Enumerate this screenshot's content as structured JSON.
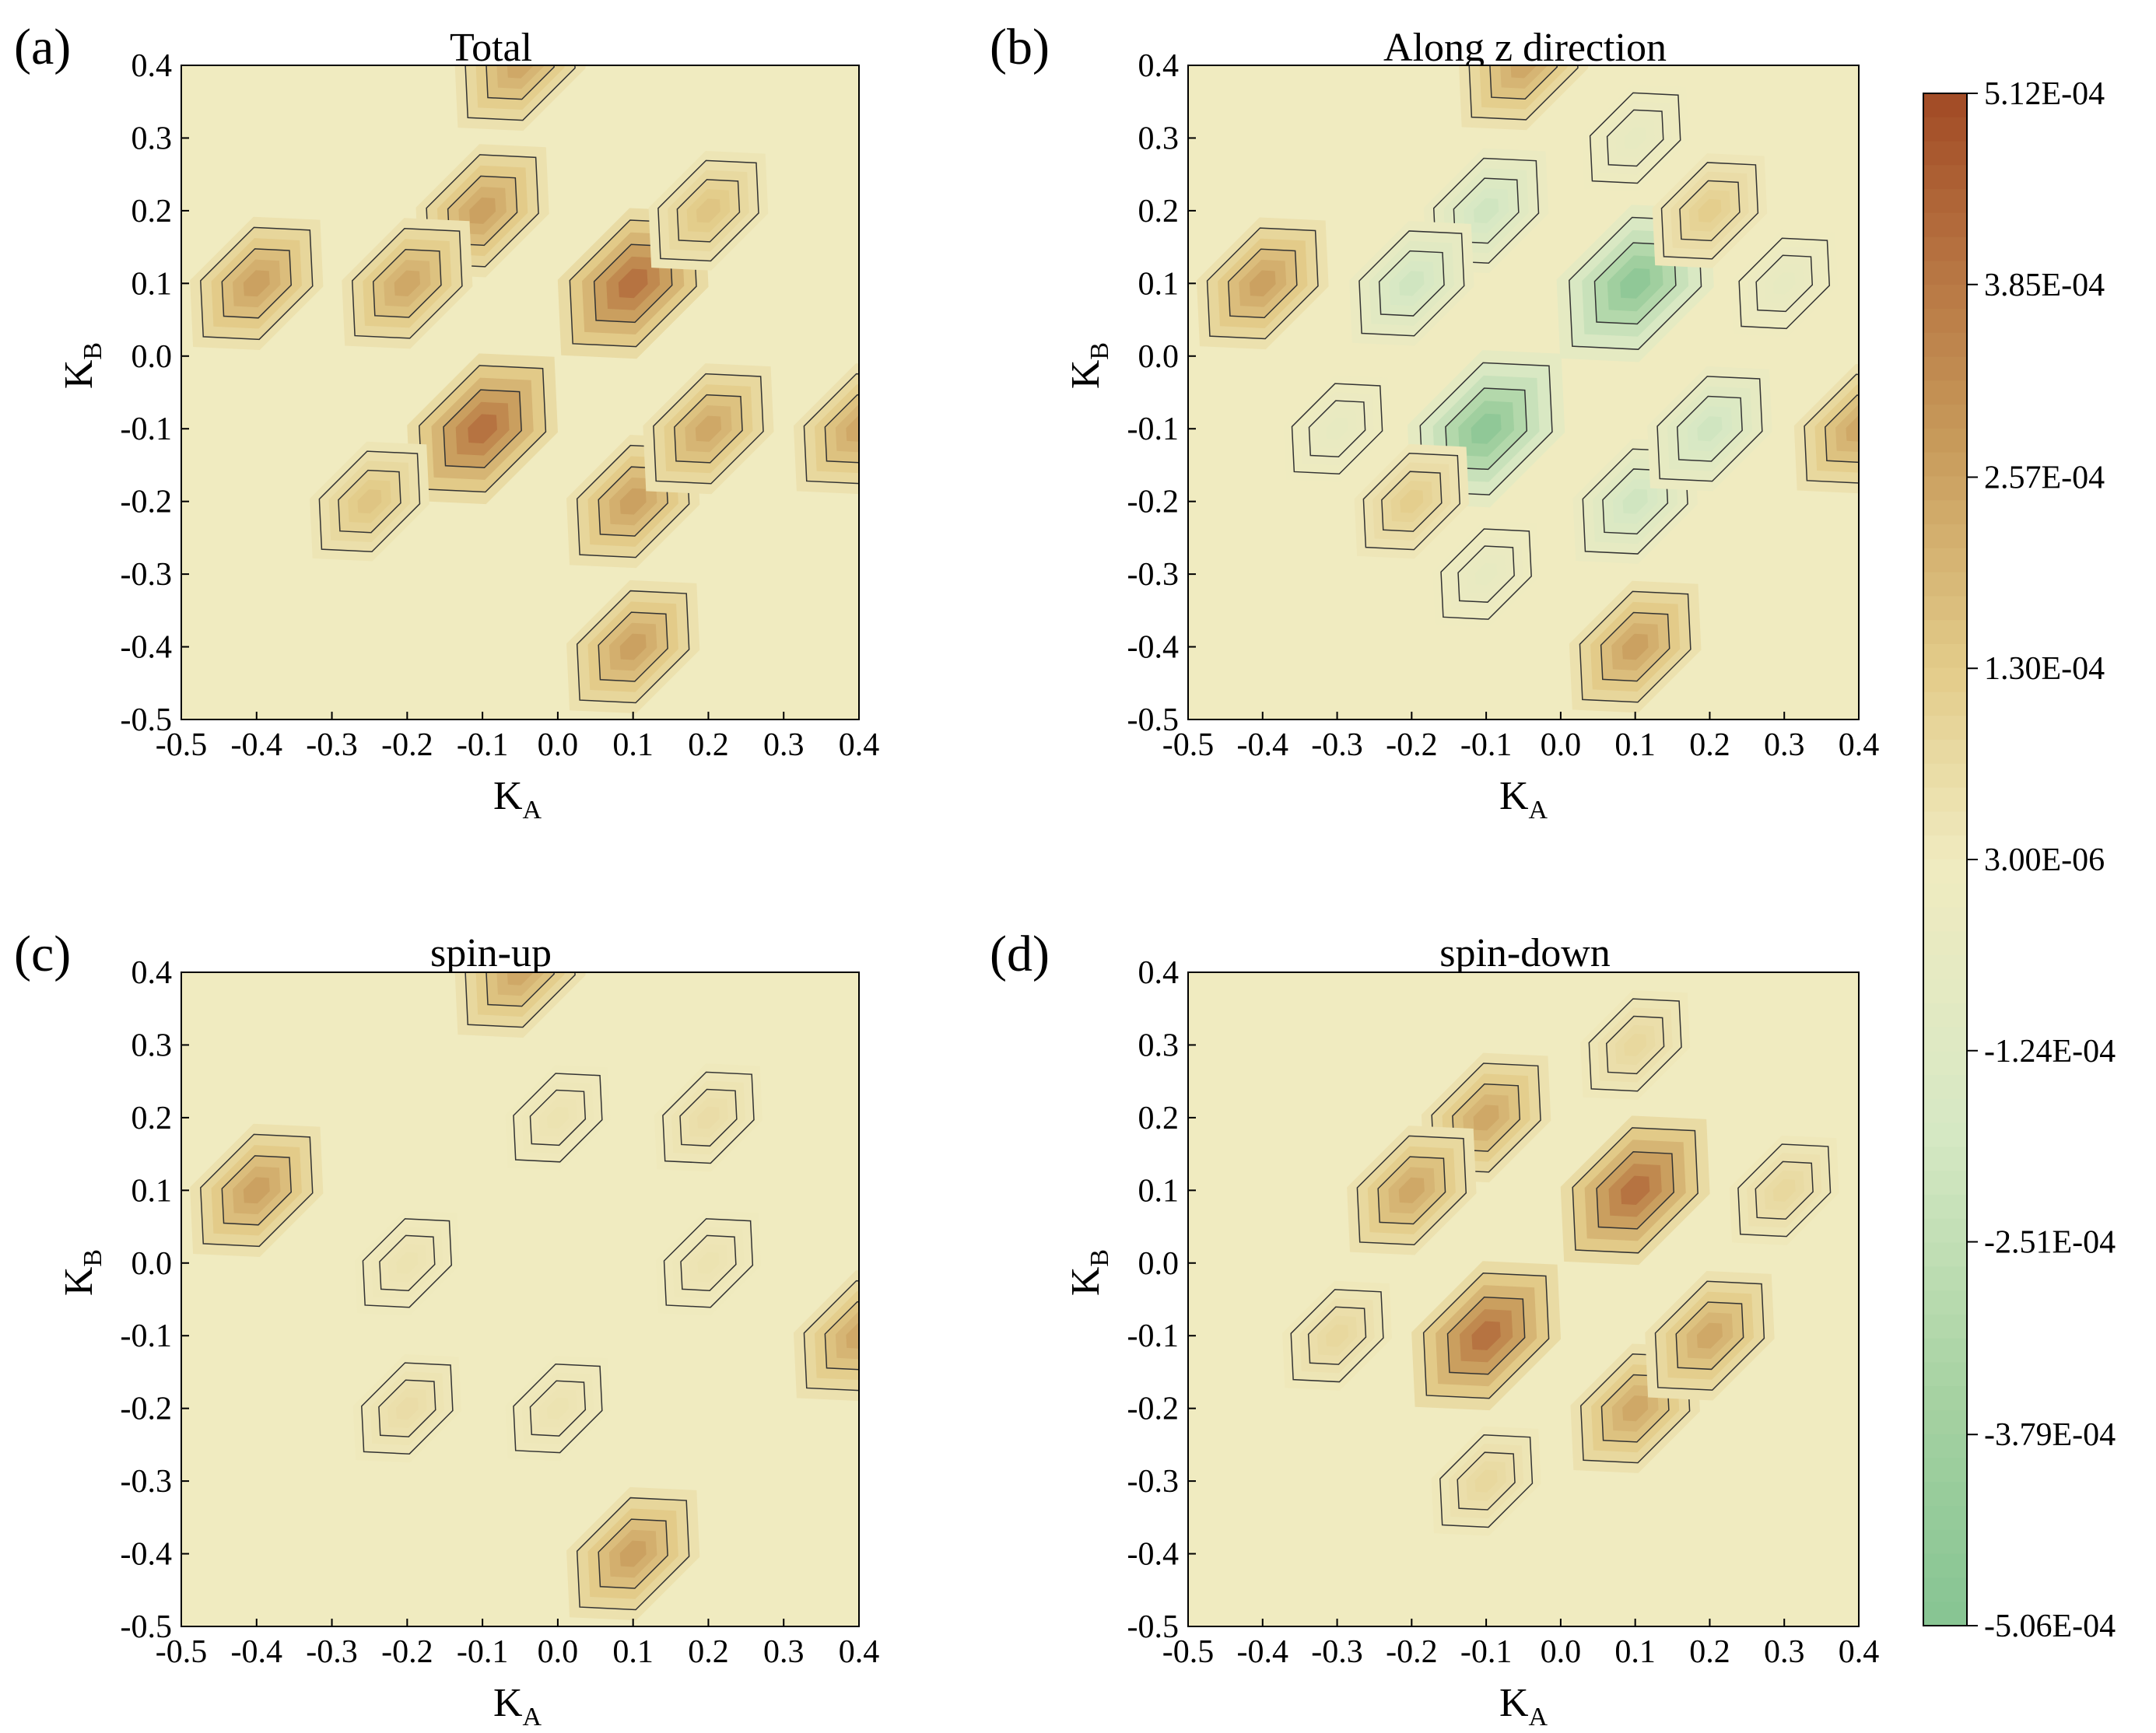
{
  "colors": {
    "background": "#f0ebc0",
    "contour_line": "#333333",
    "peak_light": "#e3cc8a",
    "peak_mid": "#c79a5a",
    "peak_dark": "#b5703f",
    "peak_max": "#a24a25",
    "neg_light": "#d6e8c4",
    "neg_mid": "#a6d2a2",
    "neg_max": "#86c492"
  },
  "chart_data": [
    {
      "type": "heatmap",
      "panel_label": "(a)",
      "title": "Total",
      "xlabel": "K",
      "xlabel_sub": "A",
      "ylabel": "K",
      "ylabel_sub": "B",
      "xlim": [
        -0.5,
        0.4
      ],
      "ylim": [
        -0.5,
        0.4
      ],
      "xticks": [
        "-0.5",
        "-0.4",
        "-0.3",
        "-0.2",
        "-0.1",
        "0.0",
        "0.1",
        "0.2",
        "0.3",
        "0.4"
      ],
      "yticks": [
        "-0.5",
        "-0.4",
        "-0.3",
        "-0.2",
        "-0.1",
        "0.0",
        "0.1",
        "0.2",
        "0.3",
        "0.4"
      ],
      "peaks": [
        {
          "x": -0.4,
          "y": 0.1,
          "value": 0.00026
        },
        {
          "x": 0.1,
          "y": -0.4,
          "value": 0.00026
        },
        {
          "x": -0.05,
          "y": 0.4,
          "value": 0.00024
        },
        {
          "x": 0.4,
          "y": -0.1,
          "value": 0.00024
        },
        {
          "x": -0.1,
          "y": -0.1,
          "value": 0.0004
        },
        {
          "x": 0.1,
          "y": 0.1,
          "value": 0.0004
        },
        {
          "x": -0.1,
          "y": 0.2,
          "value": 0.00026
        },
        {
          "x": -0.2,
          "y": 0.1,
          "value": 0.00024
        },
        {
          "x": 0.1,
          "y": -0.2,
          "value": 0.00026
        },
        {
          "x": 0.2,
          "y": -0.1,
          "value": 0.00024
        },
        {
          "x": -0.25,
          "y": -0.2,
          "value": 0.00015
        },
        {
          "x": 0.2,
          "y": 0.2,
          "value": 0.00015
        }
      ]
    },
    {
      "type": "heatmap",
      "panel_label": "(b)",
      "title": "Along z direction",
      "xlabel": "K",
      "xlabel_sub": "A",
      "ylabel": "K",
      "ylabel_sub": "B",
      "xlim": [
        -0.5,
        0.4
      ],
      "ylim": [
        -0.5,
        0.4
      ],
      "xticks": [
        "-0.5",
        "-0.4",
        "-0.3",
        "-0.2",
        "-0.1",
        "0.0",
        "0.1",
        "0.2",
        "0.3",
        "0.4"
      ],
      "yticks": [
        "-0.5",
        "-0.4",
        "-0.3",
        "-0.2",
        "-0.1",
        "0.0",
        "0.1",
        "0.2",
        "0.3",
        "0.4"
      ],
      "peaks": [
        {
          "x": -0.4,
          "y": 0.1,
          "value": 0.00026
        },
        {
          "x": 0.1,
          "y": -0.4,
          "value": 0.00026
        },
        {
          "x": -0.05,
          "y": 0.4,
          "value": 0.00024
        },
        {
          "x": 0.4,
          "y": -0.1,
          "value": 0.00024
        },
        {
          "x": -0.1,
          "y": -0.1,
          "value": -0.00046
        },
        {
          "x": 0.1,
          "y": 0.1,
          "value": -0.00046
        },
        {
          "x": -0.1,
          "y": 0.2,
          "value": -0.0002
        },
        {
          "x": -0.2,
          "y": 0.1,
          "value": -0.0002
        },
        {
          "x": 0.1,
          "y": -0.2,
          "value": -0.0002
        },
        {
          "x": 0.2,
          "y": -0.1,
          "value": -0.0002
        },
        {
          "x": -0.2,
          "y": -0.2,
          "value": 0.00012
        },
        {
          "x": 0.2,
          "y": 0.2,
          "value": 0.00012
        },
        {
          "x": -0.3,
          "y": -0.1,
          "value": -6e-05
        },
        {
          "x": -0.1,
          "y": -0.3,
          "value": -6e-05
        },
        {
          "x": 0.3,
          "y": 0.1,
          "value": -6e-05
        },
        {
          "x": 0.1,
          "y": 0.3,
          "value": -6e-05
        }
      ]
    },
    {
      "type": "heatmap",
      "panel_label": "(c)",
      "title": "spin-up",
      "xlabel": "K",
      "xlabel_sub": "A",
      "ylabel": "K",
      "ylabel_sub": "B",
      "xlim": [
        -0.5,
        0.4
      ],
      "ylim": [
        -0.5,
        0.4
      ],
      "xticks": [
        "-0.5",
        "-0.4",
        "-0.3",
        "-0.2",
        "-0.1",
        "0.0",
        "0.1",
        "0.2",
        "0.3",
        "0.4"
      ],
      "yticks": [
        "-0.5",
        "-0.4",
        "-0.3",
        "-0.2",
        "-0.1",
        "0.0",
        "0.1",
        "0.2",
        "0.3",
        "0.4"
      ],
      "peaks": [
        {
          "x": -0.4,
          "y": 0.1,
          "value": 0.00026
        },
        {
          "x": 0.1,
          "y": -0.4,
          "value": 0.00026
        },
        {
          "x": -0.05,
          "y": 0.4,
          "value": 0.00024
        },
        {
          "x": 0.4,
          "y": -0.1,
          "value": 0.00024
        },
        {
          "x": -0.2,
          "y": -0.2,
          "value": 6e-05
        },
        {
          "x": 0.2,
          "y": 0.2,
          "value": 6e-05
        },
        {
          "x": -0.2,
          "y": 0.0,
          "value": 3.5e-05
        },
        {
          "x": 0.2,
          "y": 0.0,
          "value": 3.5e-05
        },
        {
          "x": 0.0,
          "y": 0.2,
          "value": 3.5e-05
        },
        {
          "x": 0.0,
          "y": -0.2,
          "value": 3.5e-05
        }
      ]
    },
    {
      "type": "heatmap",
      "panel_label": "(d)",
      "title": "spin-down",
      "xlabel": "K",
      "xlabel_sub": "A",
      "ylabel": "K",
      "ylabel_sub": "B",
      "xlim": [
        -0.5,
        0.4
      ],
      "ylim": [
        -0.5,
        0.4
      ],
      "xticks": [
        "-0.5",
        "-0.4",
        "-0.3",
        "-0.2",
        "-0.1",
        "0.0",
        "0.1",
        "0.2",
        "0.3",
        "0.4"
      ],
      "yticks": [
        "-0.5",
        "-0.4",
        "-0.3",
        "-0.2",
        "-0.1",
        "0.0",
        "0.1",
        "0.2",
        "0.3",
        "0.4"
      ],
      "peaks": [
        {
          "x": -0.1,
          "y": -0.1,
          "value": 0.0004
        },
        {
          "x": 0.1,
          "y": 0.1,
          "value": 0.0004
        },
        {
          "x": -0.1,
          "y": 0.2,
          "value": 0.00024
        },
        {
          "x": -0.2,
          "y": 0.1,
          "value": 0.00024
        },
        {
          "x": 0.1,
          "y": -0.2,
          "value": 0.00024
        },
        {
          "x": 0.2,
          "y": -0.1,
          "value": 0.00024
        },
        {
          "x": -0.3,
          "y": -0.1,
          "value": 8e-05
        },
        {
          "x": -0.1,
          "y": -0.3,
          "value": 8e-05
        },
        {
          "x": 0.3,
          "y": 0.1,
          "value": 8e-05
        },
        {
          "x": 0.1,
          "y": 0.3,
          "value": 8e-05
        }
      ]
    }
  ],
  "colorbar": {
    "min": -0.000506,
    "max": 0.000512,
    "ticks": [
      {
        "label": "5.12E-04",
        "value": 0.000512
      },
      {
        "label": "3.85E-04",
        "value": 0.000385
      },
      {
        "label": "2.57E-04",
        "value": 0.000257
      },
      {
        "label": "1.30E-04",
        "value": 0.00013
      },
      {
        "label": "3.00E-06",
        "value": 3e-06
      },
      {
        "label": "-1.24E-04",
        "value": -0.000124
      },
      {
        "label": "-2.51E-04",
        "value": -0.000251
      },
      {
        "label": "-3.79E-04",
        "value": -0.000379
      },
      {
        "label": "-5.06E-04",
        "value": -0.000506
      }
    ]
  }
}
